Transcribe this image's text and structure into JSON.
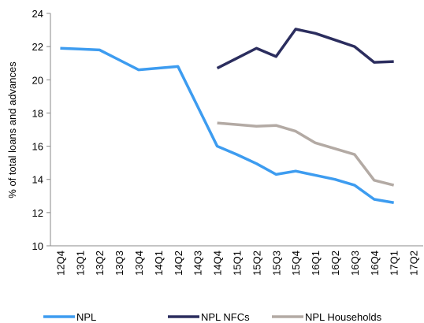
{
  "chart_data": {
    "type": "line",
    "y_label": "% of total loans and advances",
    "categories": [
      "12Q4",
      "13Q1",
      "13Q2",
      "13Q3",
      "13Q4",
      "14Q1",
      "14Q2",
      "14Q3",
      "14Q4",
      "15Q1",
      "15Q2",
      "15Q3",
      "15Q4",
      "16Q1",
      "16Q2",
      "16Q3",
      "16Q4",
      "17Q1",
      "17Q2"
    ],
    "series": [
      {
        "name": "NPL",
        "color": "#3d9cf0",
        "values": [
          21.9,
          21.85,
          21.8,
          21.2,
          20.6,
          20.7,
          20.8,
          18.4,
          16.0,
          15.5,
          14.95,
          14.3,
          14.5,
          14.25,
          14.0,
          13.65,
          12.8,
          12.6,
          null
        ]
      },
      {
        "name": "NPL NFCs",
        "color": "#2b2d5e",
        "values": [
          null,
          null,
          null,
          null,
          null,
          null,
          null,
          null,
          20.7,
          21.3,
          21.9,
          21.4,
          23.05,
          22.8,
          22.4,
          22.0,
          21.05,
          21.1,
          null
        ]
      },
      {
        "name": "NPL Households",
        "color": "#b3aaa4",
        "values": [
          null,
          null,
          null,
          null,
          null,
          null,
          null,
          null,
          17.4,
          17.3,
          17.2,
          17.25,
          16.9,
          16.2,
          15.85,
          15.5,
          13.95,
          13.65,
          null
        ]
      }
    ],
    "ylim": [
      10,
      24
    ],
    "yticks": [
      10,
      12,
      14,
      16,
      18,
      20,
      22,
      24
    ],
    "grid": false,
    "legend": "bottom"
  }
}
